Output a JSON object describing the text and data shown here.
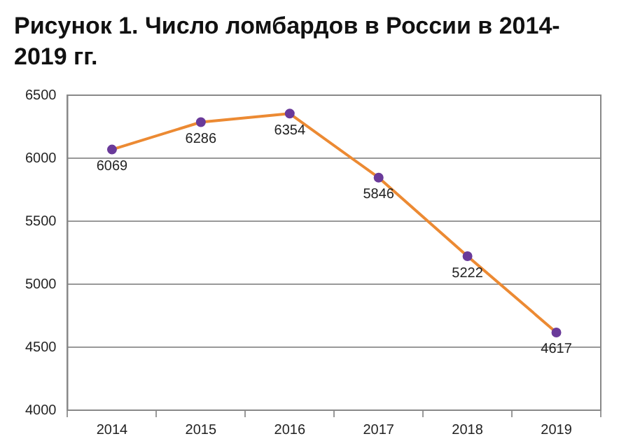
{
  "chart_data": {
    "type": "line",
    "title": "Рисунок 1. Число ломбардов в России в 2014-2019 гг.",
    "categories": [
      "2014",
      "2015",
      "2016",
      "2017",
      "2018",
      "2019"
    ],
    "series": [
      {
        "color": "#ec8a33",
        "colors": [
          "#6a3a9a",
          "#6a3a9a",
          "#6a3a9a",
          "#6a3a9a",
          "#6a3a9a",
          "#6a3a9a"
        ],
        "values": [
          6069,
          6286,
          6354,
          5846,
          5222,
          4617
        ]
      }
    ],
    "ylim": [
      4000,
      6500
    ],
    "yticks": [
      4000,
      4500,
      5000,
      5500,
      6000,
      6500
    ],
    "grid": "y",
    "legend": false,
    "marker": "circle",
    "line_style": "solid",
    "data_labels": true
  }
}
